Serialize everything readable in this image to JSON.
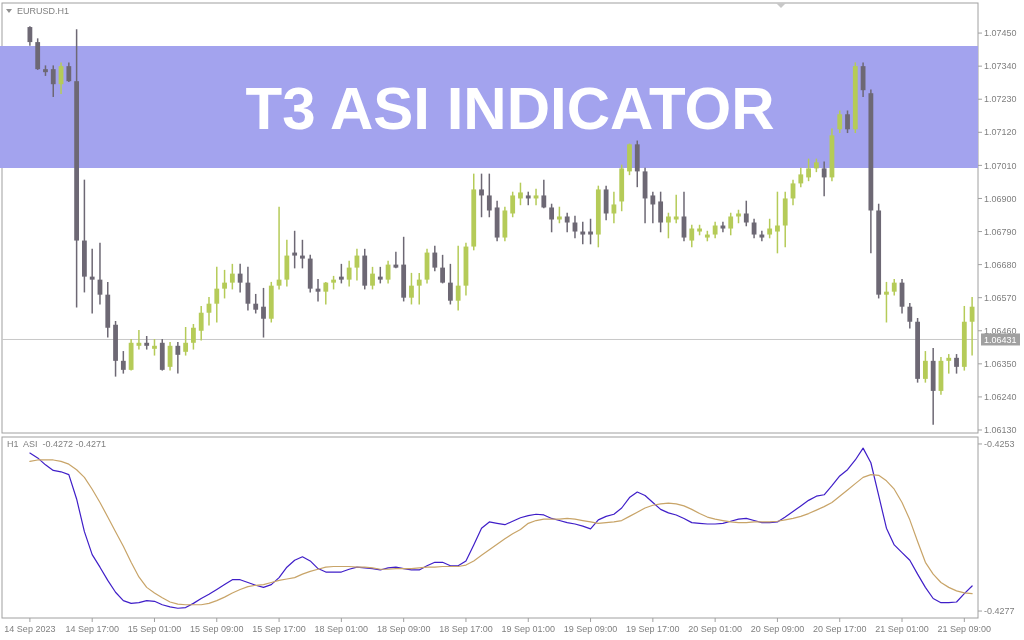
{
  "chart_data": [
    {
      "type": "candlestick",
      "title": "T3 ASI INDICATOR",
      "subtitle": "EURUSD.H1",
      "ohlc": [
        [
          1.0747,
          1.0747,
          1.0741,
          1.0742
        ],
        [
          1.0742,
          1.0743,
          1.0733,
          1.0733
        ],
        [
          1.0733,
          1.0734,
          1.0731,
          1.0732
        ],
        [
          1.0733,
          1.0734,
          1.0724,
          1.0728
        ],
        [
          1.0728,
          1.0735,
          1.0725,
          1.0734
        ],
        [
          1.0734,
          1.0735,
          1.0729,
          1.0729
        ],
        [
          1.0729,
          1.0746,
          1.0654,
          1.0676
        ],
        [
          1.0676,
          1.0696,
          1.0659,
          1.0664
        ],
        [
          1.0664,
          1.0673,
          1.0652,
          1.0663
        ],
        [
          1.0663,
          1.0675,
          1.0655,
          1.0658
        ],
        [
          1.0658,
          1.0662,
          1.0644,
          1.0647
        ],
        [
          1.0648,
          1.0649,
          1.0631,
          1.0636
        ],
        [
          1.0636,
          1.0639,
          1.0632,
          1.0633
        ],
        [
          1.0633,
          1.0643,
          1.0633,
          1.0642
        ],
        [
          1.0641,
          1.0646,
          1.064,
          1.0642
        ],
        [
          1.0642,
          1.0644,
          1.064,
          1.0641
        ],
        [
          1.064,
          1.0643,
          1.0638,
          1.0641
        ],
        [
          1.0642,
          1.0643,
          1.0633,
          1.0633
        ],
        [
          1.0634,
          1.0642,
          1.0633,
          1.0641
        ],
        [
          1.0641,
          1.0642,
          1.0632,
          1.0638
        ],
        [
          1.0639,
          1.0647,
          1.0638,
          1.0642
        ],
        [
          1.0642,
          1.0648,
          1.064,
          1.0647
        ],
        [
          1.0646,
          1.0654,
          1.0643,
          1.0652
        ],
        [
          1.0652,
          1.0657,
          1.0648,
          1.0655
        ],
        [
          1.0655,
          1.0667,
          1.0649,
          1.066
        ],
        [
          1.066,
          1.0666,
          1.0657,
          1.0662
        ],
        [
          1.0662,
          1.0668,
          1.066,
          1.0665
        ],
        [
          1.0665,
          1.0668,
          1.0659,
          1.0662
        ],
        [
          1.0662,
          1.0667,
          1.0653,
          1.0655
        ],
        [
          1.0655,
          1.0658,
          1.0652,
          1.0653
        ],
        [
          1.0654,
          1.066,
          1.0644,
          1.065
        ],
        [
          1.065,
          1.0662,
          1.0649,
          1.0661
        ],
        [
          1.0661,
          1.0687,
          1.066,
          1.0663
        ],
        [
          1.0663,
          1.0676,
          1.0661,
          1.0671
        ],
        [
          1.0672,
          1.0679,
          1.0667,
          1.0671
        ],
        [
          1.0671,
          1.0676,
          1.0667,
          1.067
        ],
        [
          1.067,
          1.0671,
          1.0659,
          1.066
        ],
        [
          1.066,
          1.0663,
          1.0656,
          1.0659
        ],
        [
          1.0659,
          1.0662,
          1.0655,
          1.0662
        ],
        [
          1.0662,
          1.0664,
          1.066,
          1.0663
        ],
        [
          1.0664,
          1.0668,
          1.0662,
          1.0663
        ],
        [
          1.0663,
          1.0669,
          1.0661,
          1.0667
        ],
        [
          1.0667,
          1.0673,
          1.0663,
          1.0671
        ],
        [
          1.0671,
          1.0673,
          1.066,
          1.0661
        ],
        [
          1.0661,
          1.0667,
          1.066,
          1.0665
        ],
        [
          1.0664,
          1.0667,
          1.0662,
          1.0663
        ],
        [
          1.0663,
          1.0669,
          1.0662,
          1.0668
        ],
        [
          1.0668,
          1.0672,
          1.0667,
          1.0667
        ],
        [
          1.0668,
          1.0677,
          1.0656,
          1.0657
        ],
        [
          1.0657,
          1.0665,
          1.0655,
          1.0661
        ],
        [
          1.0661,
          1.0665,
          1.0655,
          1.0663
        ],
        [
          1.0663,
          1.0673,
          1.0662,
          1.0672
        ],
        [
          1.0672,
          1.0674,
          1.0666,
          1.0667
        ],
        [
          1.0667,
          1.0671,
          1.0662,
          1.0662
        ],
        [
          1.0662,
          1.0668,
          1.0655,
          1.0656
        ],
        [
          1.0656,
          1.0674,
          1.0653,
          1.0661
        ],
        [
          1.0661,
          1.0675,
          1.0658,
          1.0674
        ],
        [
          1.0674,
          1.0698,
          1.0673,
          1.0693
        ],
        [
          1.0693,
          1.0698,
          1.0684,
          1.0691
        ],
        [
          1.0691,
          1.0698,
          1.0684,
          1.0686
        ],
        [
          1.0687,
          1.0689,
          1.0676,
          1.0677
        ],
        [
          1.0677,
          1.0687,
          1.0676,
          1.0686
        ],
        [
          1.0685,
          1.0692,
          1.0684,
          1.0691
        ],
        [
          1.069,
          1.0695,
          1.0688,
          1.0692
        ],
        [
          1.0691,
          1.0692,
          1.0688,
          1.069
        ],
        [
          1.069,
          1.0693,
          1.0688,
          1.0691
        ],
        [
          1.0691,
          1.0696,
          1.0687,
          1.0687
        ],
        [
          1.0687,
          1.0688,
          1.0679,
          1.0683
        ],
        [
          1.0683,
          1.0687,
          1.0682,
          1.0684
        ],
        [
          1.0684,
          1.0685,
          1.0679,
          1.0682
        ],
        [
          1.0682,
          1.0684,
          1.0677,
          1.0679
        ],
        [
          1.0679,
          1.0682,
          1.0675,
          1.0678
        ],
        [
          1.0679,
          1.0683,
          1.0675,
          1.0678
        ],
        [
          1.0678,
          1.0694,
          1.0674,
          1.0693
        ],
        [
          1.0693,
          1.0694,
          1.0683,
          1.0685
        ],
        [
          1.0685,
          1.0692,
          1.0682,
          1.0688
        ],
        [
          1.0689,
          1.0701,
          1.0686,
          1.07
        ],
        [
          1.0699,
          1.0708,
          1.0698,
          1.0708
        ],
        [
          1.0708,
          1.0709,
          1.0694,
          1.0699
        ],
        [
          1.0699,
          1.07,
          1.0682,
          1.069
        ],
        [
          1.0691,
          1.0692,
          1.0682,
          1.0688
        ],
        [
          1.0689,
          1.0692,
          1.0679,
          1.0682
        ],
        [
          1.0682,
          1.0685,
          1.0677,
          1.0684
        ],
        [
          1.0683,
          1.0691,
          1.0682,
          1.0684
        ],
        [
          1.0684,
          1.0692,
          1.0676,
          1.0677
        ],
        [
          1.0676,
          1.0681,
          1.0674,
          1.068
        ],
        [
          1.0679,
          1.0681,
          1.0678,
          1.068
        ],
        [
          1.0677,
          1.0679,
          1.0676,
          1.0678
        ],
        [
          1.0678,
          1.0682,
          1.0677,
          1.0681
        ],
        [
          1.0681,
          1.0682,
          1.0679,
          1.068
        ],
        [
          1.068,
          1.0685,
          1.0678,
          1.0684
        ],
        [
          1.0684,
          1.0686,
          1.0682,
          1.0685
        ],
        [
          1.0685,
          1.0689,
          1.0681,
          1.0682
        ],
        [
          1.0682,
          1.0683,
          1.0677,
          1.0678
        ],
        [
          1.0678,
          1.0679,
          1.0676,
          1.0677
        ],
        [
          1.0678,
          1.0683,
          1.0677,
          1.068
        ],
        [
          1.0679,
          1.0692,
          1.0672,
          1.0681
        ],
        [
          1.0681,
          1.0692,
          1.0674,
          1.069
        ],
        [
          1.069,
          1.0696,
          1.0688,
          1.0695
        ],
        [
          1.0695,
          1.07,
          1.0694,
          1.0698
        ],
        [
          1.0697,
          1.0703,
          1.0696,
          1.07
        ],
        [
          1.07,
          1.0703,
          1.0699,
          1.0702
        ],
        [
          1.07,
          1.0702,
          1.0691,
          1.0697
        ],
        [
          1.0697,
          1.0713,
          1.0696,
          1.0711
        ],
        [
          1.0713,
          1.0719,
          1.0712,
          1.0718
        ],
        [
          1.0718,
          1.0719,
          1.0712,
          1.0713
        ],
        [
          1.0713,
          1.0735,
          1.0712,
          1.0734
        ],
        [
          1.0734,
          1.0735,
          1.0724,
          1.0726
        ],
        [
          1.0725,
          1.0726,
          1.0672,
          1.0686
        ],
        [
          1.0686,
          1.0688,
          1.0657,
          1.0658
        ],
        [
          1.0658,
          1.0662,
          1.0649,
          1.0659
        ],
        [
          1.0659,
          1.0663,
          1.0658,
          1.0662
        ],
        [
          1.0662,
          1.0663,
          1.0652,
          1.0654
        ],
        [
          1.0654,
          1.0655,
          1.0647,
          1.0649
        ],
        [
          1.0649,
          1.065,
          1.0629,
          1.063
        ],
        [
          1.063,
          1.0639,
          1.0629,
          1.0636
        ],
        [
          1.0636,
          1.064,
          1.0615,
          1.0626
        ],
        [
          1.0626,
          1.0637,
          1.0625,
          1.0636
        ],
        [
          1.0636,
          1.0638,
          1.0632,
          1.0637
        ],
        [
          1.0637,
          1.0638,
          1.0632,
          1.0634
        ],
        [
          1.0634,
          1.0654,
          1.0633,
          1.0649
        ],
        [
          1.0649,
          1.0657,
          1.0638,
          1.0654
        ]
      ],
      "colors": [
        "#6d6874",
        "#6d6874",
        "#6d6874",
        "#6d6874",
        "#b5cb58",
        "#6d6874",
        "#6d6874",
        "#6d6874",
        "#6d6874",
        "#6d6874",
        "#6d6874",
        "#6d6874",
        "#6d6874",
        "#b5cb58",
        "#b5cb58",
        "#6d6874",
        "#b5cb58",
        "#6d6874",
        "#b5cb58",
        "#6d6874",
        "#b5cb58",
        "#b5cb58",
        "#b5cb58",
        "#b5cb58",
        "#b5cb58",
        "#b5cb58",
        "#b5cb58",
        "#6d6874",
        "#6d6874",
        "#6d6874",
        "#6d6874",
        "#b5cb58",
        "#b5cb58",
        "#b5cb58",
        "#6d6874",
        "#6d6874",
        "#6d6874",
        "#6d6874",
        "#b5cb58",
        "#b5cb58",
        "#6d6874",
        "#b5cb58",
        "#b5cb58",
        "#6d6874",
        "#b5cb58",
        "#6d6874",
        "#b5cb58",
        "#6d6874",
        "#6d6874",
        "#b5cb58",
        "#b5cb58",
        "#b5cb58",
        "#6d6874",
        "#6d6874",
        "#6d6874",
        "#b5cb58",
        "#b5cb58",
        "#b5cb58",
        "#6d6874",
        "#6d6874",
        "#6d6874",
        "#b5cb58",
        "#b5cb58",
        "#b5cb58",
        "#6d6874",
        "#b5cb58",
        "#6d6874",
        "#6d6874",
        "#b5cb58",
        "#6d6874",
        "#6d6874",
        "#6d6874",
        "#6d6874",
        "#b5cb58",
        "#6d6874",
        "#b5cb58",
        "#b5cb58",
        "#b5cb58",
        "#6d6874",
        "#6d6874",
        "#6d6874",
        "#6d6874",
        "#b5cb58",
        "#b5cb58",
        "#6d6874",
        "#b5cb58",
        "#b5cb58",
        "#b5cb58",
        "#b5cb58",
        "#6d6874",
        "#b5cb58",
        "#b5cb58",
        "#6d6874",
        "#6d6874",
        "#6d6874",
        "#b5cb58",
        "#b5cb58",
        "#b5cb58",
        "#b5cb58",
        "#b5cb58",
        "#b5cb58",
        "#b5cb58",
        "#6d6874",
        "#b5cb58",
        "#b5cb58",
        "#6d6874",
        "#b5cb58",
        "#6d6874",
        "#6d6874",
        "#6d6874",
        "#b5cb58",
        "#b5cb58",
        "#6d6874",
        "#6d6874",
        "#6d6874",
        "#b5cb58",
        "#6d6874",
        "#b5cb58",
        "#b5cb58",
        "#6d6874",
        "#b5cb58",
        "#b5cb58"
      ],
      "ylim": [
        1.0612,
        1.0755
      ],
      "yticks": [
        {
          "value": 1.0745,
          "label": "1.07450"
        },
        {
          "value": 1.0734,
          "label": "1.07340"
        },
        {
          "value": 1.0723,
          "label": "1.07230"
        },
        {
          "value": 1.0712,
          "label": "1.07120"
        },
        {
          "value": 1.0701,
          "label": "1.07010"
        },
        {
          "value": 1.069,
          "label": "1.06900"
        },
        {
          "value": 1.0679,
          "label": "1.06790"
        },
        {
          "value": 1.0668,
          "label": "1.06680"
        },
        {
          "value": 1.0657,
          "label": "1.06570"
        },
        {
          "value": 1.0646,
          "label": "1.06460"
        },
        {
          "value": 1.0635,
          "label": "1.06350"
        },
        {
          "value": 1.0624,
          "label": "1.06240"
        },
        {
          "value": 1.0613,
          "label": "1.06130"
        }
      ],
      "ref_lines": [
        {
          "axis": "y",
          "value": 1.06431,
          "label": "1.06431",
          "color": "#c8c8c8"
        }
      ]
    },
    {
      "type": "line",
      "title": "H1  ASI  -0.4272 -0.4271",
      "categories": [
        "14 Sep 2023",
        null,
        null,
        null,
        null,
        null,
        null,
        null,
        "14 Sep 17:00",
        null,
        null,
        null,
        null,
        null,
        null,
        null,
        "15 Sep 01:00",
        null,
        null,
        null,
        null,
        null,
        null,
        null,
        "15 Sep 09:00",
        null,
        null,
        null,
        null,
        null,
        null,
        null,
        "15 Sep 17:00",
        null,
        null,
        null,
        null,
        null,
        null,
        null,
        "18 Sep 01:00",
        null,
        null,
        null,
        null,
        null,
        null,
        null,
        "18 Sep 09:00",
        null,
        null,
        null,
        null,
        null,
        null,
        null,
        "18 Sep 17:00",
        null,
        null,
        null,
        null,
        null,
        null,
        null,
        "19 Sep 01:00",
        null,
        null,
        null,
        null,
        null,
        null,
        null,
        "19 Sep 09:00",
        null,
        null,
        null,
        null,
        null,
        null,
        null,
        "19 Sep 17:00",
        null,
        null,
        null,
        null,
        null,
        null,
        null,
        "20 Sep 01:00",
        null,
        null,
        null,
        null,
        null,
        null,
        null,
        "20 Sep 09:00",
        null,
        null,
        null,
        null,
        null,
        null,
        null,
        "20 Sep 17:00",
        null,
        null,
        null,
        null,
        null,
        null,
        null,
        "21 Sep 01:00",
        null,
        null,
        null,
        null,
        null,
        null,
        null,
        "21 Sep 09:00",
        null
      ],
      "series": [
        {
          "color": "#3f1ec8",
          "values": [
            -0.42543,
            -0.4255,
            -0.4256,
            -0.42568,
            -0.4257,
            -0.42574,
            -0.42609,
            -0.42656,
            -0.42689,
            -0.42707,
            -0.42726,
            -0.42743,
            -0.42755,
            -0.42759,
            -0.42758,
            -0.42755,
            -0.42756,
            -0.42761,
            -0.42764,
            -0.42766,
            -0.42765,
            -0.42759,
            -0.42752,
            -0.42746,
            -0.42739,
            -0.42732,
            -0.42725,
            -0.42725,
            -0.42729,
            -0.42733,
            -0.42736,
            -0.42732,
            -0.42722,
            -0.42707,
            -0.42697,
            -0.42692,
            -0.42698,
            -0.42709,
            -0.42714,
            -0.42714,
            -0.42714,
            -0.4271,
            -0.42707,
            -0.42708,
            -0.42709,
            -0.42711,
            -0.42708,
            -0.42707,
            -0.42709,
            -0.42711,
            -0.42711,
            -0.42705,
            -0.427,
            -0.427,
            -0.42705,
            -0.42705,
            -0.42698,
            -0.42675,
            -0.42651,
            -0.42642,
            -0.42644,
            -0.42646,
            -0.42641,
            -0.42636,
            -0.42633,
            -0.42631,
            -0.42632,
            -0.42637,
            -0.4264,
            -0.42643,
            -0.42645,
            -0.42648,
            -0.42652,
            -0.42639,
            -0.42634,
            -0.42631,
            -0.42622,
            -0.42607,
            -0.42599,
            -0.42604,
            -0.42614,
            -0.42624,
            -0.42629,
            -0.42632,
            -0.42637,
            -0.42643,
            -0.42644,
            -0.42645,
            -0.42645,
            -0.42644,
            -0.42641,
            -0.42638,
            -0.42637,
            -0.4264,
            -0.42643,
            -0.42643,
            -0.42642,
            -0.42635,
            -0.42627,
            -0.42619,
            -0.42611,
            -0.42605,
            -0.42603,
            -0.4259,
            -0.42576,
            -0.42567,
            -0.42553,
            -0.42536,
            -0.42557,
            -0.42604,
            -0.42651,
            -0.42675,
            -0.42686,
            -0.42697,
            -0.42717,
            -0.42736,
            -0.42752,
            -0.42758,
            -0.42758,
            -0.42757,
            -0.42745,
            -0.42734
          ]
        },
        {
          "color": "#c8a468",
          "values": [
            -0.42555,
            -0.42553,
            -0.42553,
            -0.42553,
            -0.42555,
            -0.42559,
            -0.42567,
            -0.42578,
            -0.42595,
            -0.42614,
            -0.42635,
            -0.42656,
            -0.42677,
            -0.427,
            -0.42721,
            -0.42736,
            -0.42744,
            -0.42751,
            -0.42757,
            -0.4276,
            -0.42761,
            -0.42761,
            -0.42761,
            -0.42759,
            -0.42755,
            -0.4275,
            -0.42744,
            -0.42739,
            -0.42735,
            -0.42733,
            -0.42732,
            -0.42729,
            -0.42726,
            -0.42724,
            -0.42722,
            -0.42717,
            -0.42713,
            -0.4271,
            -0.42707,
            -0.42706,
            -0.42706,
            -0.42706,
            -0.42707,
            -0.42707,
            -0.42708,
            -0.4271,
            -0.4271,
            -0.42709,
            -0.42709,
            -0.42709,
            -0.42708,
            -0.42707,
            -0.42707,
            -0.42706,
            -0.42706,
            -0.42706,
            -0.42704,
            -0.42698,
            -0.4269,
            -0.42682,
            -0.42674,
            -0.42666,
            -0.42659,
            -0.42653,
            -0.42644,
            -0.4264,
            -0.42638,
            -0.42638,
            -0.42638,
            -0.42637,
            -0.42638,
            -0.4264,
            -0.42642,
            -0.42644,
            -0.42643,
            -0.42642,
            -0.4264,
            -0.42634,
            -0.42628,
            -0.42622,
            -0.42618,
            -0.42616,
            -0.42615,
            -0.42616,
            -0.42619,
            -0.42624,
            -0.4263,
            -0.42635,
            -0.42638,
            -0.4264,
            -0.42642,
            -0.42643,
            -0.42643,
            -0.42642,
            -0.42642,
            -0.42642,
            -0.42641,
            -0.42639,
            -0.42637,
            -0.42634,
            -0.4263,
            -0.42625,
            -0.4262,
            -0.42614,
            -0.42605,
            -0.42596,
            -0.42587,
            -0.42578,
            -0.42574,
            -0.42575,
            -0.42583,
            -0.42595,
            -0.42614,
            -0.42639,
            -0.4267,
            -0.427,
            -0.42717,
            -0.42729,
            -0.42736,
            -0.42741,
            -0.42744,
            -0.42745
          ]
        }
      ],
      "ylim": [
        -0.4278,
        -0.4252
      ],
      "yticks": [
        -0.4253,
        -0.4277
      ]
    }
  ]
}
